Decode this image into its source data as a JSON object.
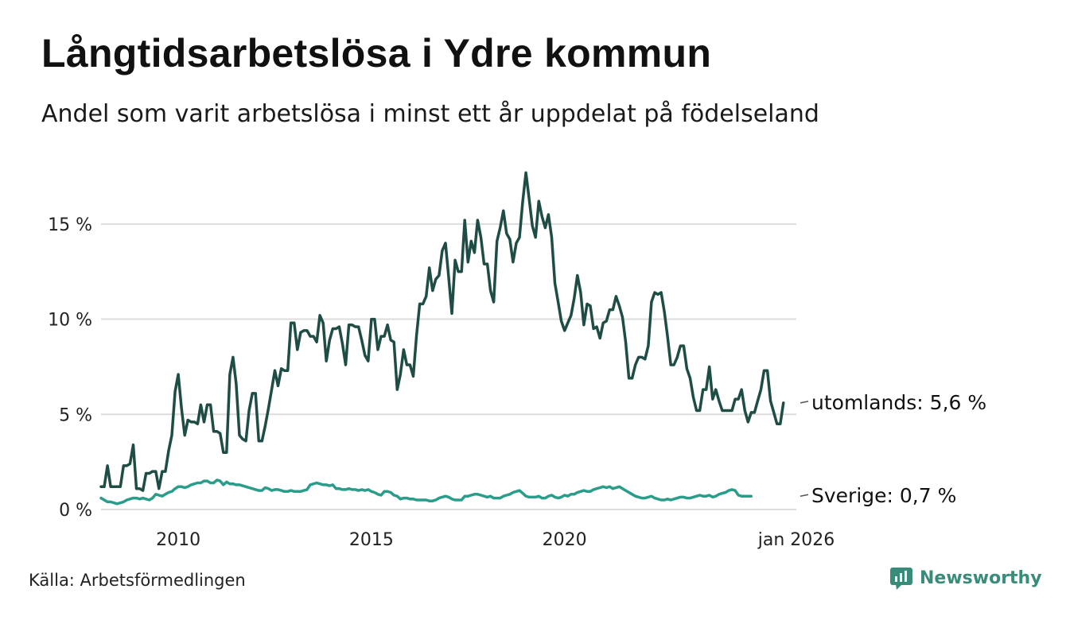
{
  "title": "Långtidsarbetslösa i Ydre kommun",
  "subtitle": "Andel som varit arbetslösa i minst ett år uppdelat på födelseland",
  "source": "Källa: Arbetsförmedlingen",
  "brand": {
    "name": "Newsworthy",
    "icon": "newsworthy-logo-icon",
    "color": "#3a8c7a"
  },
  "chart_data": {
    "type": "line",
    "title": "Långtidsarbetslösa i Ydre kommun",
    "xlabel": "",
    "ylabel": "",
    "xlim": [
      2008.0,
      2026.0
    ],
    "ylim": [
      0,
      18
    ],
    "yticks": [
      0,
      5,
      10,
      15
    ],
    "ytick_labels": [
      "0 %",
      "5 %",
      "10 %",
      "15 %"
    ],
    "xticks": [
      2010,
      2015,
      2020,
      2026.0
    ],
    "xtick_labels": [
      "2010",
      "2015",
      "2020",
      "jan 2026"
    ],
    "grid": true,
    "x_start": 2008.0,
    "x_step": 0.083333,
    "series": [
      {
        "name": "utomlands",
        "label": "utomlands: 5,6 %",
        "color": "#1f4d46",
        "values": [
          1.2,
          1.2,
          2.3,
          1.2,
          1.2,
          1.2,
          1.2,
          2.3,
          2.3,
          2.4,
          3.4,
          1.1,
          1.1,
          1.0,
          1.9,
          1.9,
          2.0,
          2.0,
          1.1,
          2.0,
          2.0,
          3.1,
          3.9,
          6.2,
          7.1,
          5.3,
          3.9,
          4.7,
          4.6,
          4.6,
          4.5,
          5.5,
          4.6,
          5.5,
          5.5,
          4.1,
          4.1,
          4.0,
          3.0,
          3.0,
          7.1,
          8.0,
          6.6,
          3.9,
          3.7,
          3.6,
          5.2,
          6.1,
          6.1,
          3.6,
          3.6,
          4.4,
          5.3,
          6.3,
          7.3,
          6.5,
          7.4,
          7.3,
          7.3,
          9.8,
          9.8,
          8.4,
          9.3,
          9.4,
          9.4,
          9.1,
          9.1,
          8.8,
          10.2,
          9.8,
          7.8,
          8.9,
          9.5,
          9.5,
          9.6,
          8.7,
          7.6,
          9.7,
          9.7,
          9.6,
          9.6,
          8.9,
          8.1,
          7.8,
          10.0,
          10.0,
          8.4,
          9.1,
          9.1,
          9.7,
          8.9,
          8.8,
          6.3,
          7.1,
          8.4,
          7.6,
          7.6,
          7.0,
          9.1,
          10.8,
          10.8,
          11.2,
          12.7,
          11.5,
          12.1,
          12.3,
          13.6,
          14.0,
          12.2,
          10.3,
          13.1,
          12.5,
          12.5,
          15.2,
          13.0,
          14.1,
          13.5,
          15.2,
          14.3,
          12.9,
          12.9,
          11.5,
          10.9,
          14.1,
          14.8,
          15.7,
          14.5,
          14.2,
          13.0,
          14.0,
          14.3,
          16.2,
          17.7,
          16.3,
          14.9,
          14.3,
          16.2,
          15.4,
          14.8,
          15.5,
          14.3,
          11.9,
          10.9,
          9.9,
          9.4,
          9.8,
          10.2,
          11.1,
          12.3,
          11.4,
          9.7,
          10.8,
          10.7,
          9.5,
          9.6,
          9.0,
          9.8,
          9.9,
          10.5,
          10.5,
          11.2,
          10.7,
          10.1,
          8.8,
          6.9,
          6.9,
          7.6,
          8.0,
          8.0,
          7.9,
          8.6,
          10.9,
          11.4,
          11.3,
          11.4,
          10.4,
          9.1,
          7.6,
          7.6,
          8.0,
          8.6,
          8.6,
          7.4,
          6.9,
          5.9,
          5.2,
          5.2,
          6.3,
          6.3,
          7.5,
          5.8,
          6.3,
          5.7,
          5.2,
          5.2,
          5.2,
          5.2,
          5.8,
          5.8,
          6.3,
          5.2,
          4.6,
          5.1,
          5.1,
          5.7,
          6.3,
          7.3,
          7.3,
          5.7,
          5.1,
          4.5,
          4.5,
          5.6
        ]
      },
      {
        "name": "Sverige",
        "label": "Sverige: 0,7 %",
        "color": "#2a9d8a",
        "values": [
          0.6,
          0.5,
          0.4,
          0.4,
          0.35,
          0.3,
          0.35,
          0.4,
          0.5,
          0.55,
          0.6,
          0.6,
          0.55,
          0.6,
          0.55,
          0.5,
          0.6,
          0.8,
          0.75,
          0.7,
          0.8,
          0.9,
          0.95,
          1.1,
          1.2,
          1.2,
          1.15,
          1.2,
          1.3,
          1.35,
          1.4,
          1.4,
          1.5,
          1.5,
          1.4,
          1.4,
          1.55,
          1.5,
          1.3,
          1.45,
          1.35,
          1.35,
          1.3,
          1.3,
          1.25,
          1.2,
          1.15,
          1.1,
          1.05,
          1.0,
          1.0,
          1.15,
          1.1,
          1.0,
          1.05,
          1.05,
          1.0,
          0.95,
          0.95,
          1.0,
          0.95,
          0.95,
          0.95,
          1.0,
          1.05,
          1.3,
          1.35,
          1.4,
          1.35,
          1.3,
          1.3,
          1.25,
          1.3,
          1.1,
          1.1,
          1.05,
          1.05,
          1.1,
          1.05,
          1.05,
          1.0,
          1.05,
          1.0,
          1.05,
          0.95,
          0.9,
          0.8,
          0.75,
          0.95,
          0.95,
          0.9,
          0.75,
          0.7,
          0.55,
          0.6,
          0.6,
          0.55,
          0.55,
          0.5,
          0.5,
          0.5,
          0.5,
          0.45,
          0.45,
          0.5,
          0.6,
          0.65,
          0.7,
          0.65,
          0.55,
          0.5,
          0.5,
          0.5,
          0.7,
          0.7,
          0.75,
          0.8,
          0.8,
          0.75,
          0.7,
          0.65,
          0.7,
          0.6,
          0.6,
          0.6,
          0.7,
          0.75,
          0.8,
          0.9,
          0.95,
          1.0,
          0.85,
          0.7,
          0.65,
          0.65,
          0.65,
          0.7,
          0.6,
          0.6,
          0.7,
          0.75,
          0.65,
          0.6,
          0.65,
          0.75,
          0.7,
          0.8,
          0.8,
          0.9,
          0.95,
          1.0,
          0.95,
          0.95,
          1.05,
          1.1,
          1.15,
          1.2,
          1.15,
          1.2,
          1.1,
          1.15,
          1.2,
          1.1,
          1.0,
          0.9,
          0.8,
          0.7,
          0.65,
          0.6,
          0.6,
          0.65,
          0.7,
          0.6,
          0.55,
          0.5,
          0.5,
          0.55,
          0.5,
          0.55,
          0.6,
          0.65,
          0.65,
          0.6,
          0.6,
          0.65,
          0.7,
          0.75,
          0.7,
          0.7,
          0.75,
          0.65,
          0.7,
          0.8,
          0.85,
          0.9,
          1.0,
          1.05,
          1.0,
          0.75,
          0.7,
          0.7,
          0.7,
          0.7
        ]
      }
    ]
  }
}
